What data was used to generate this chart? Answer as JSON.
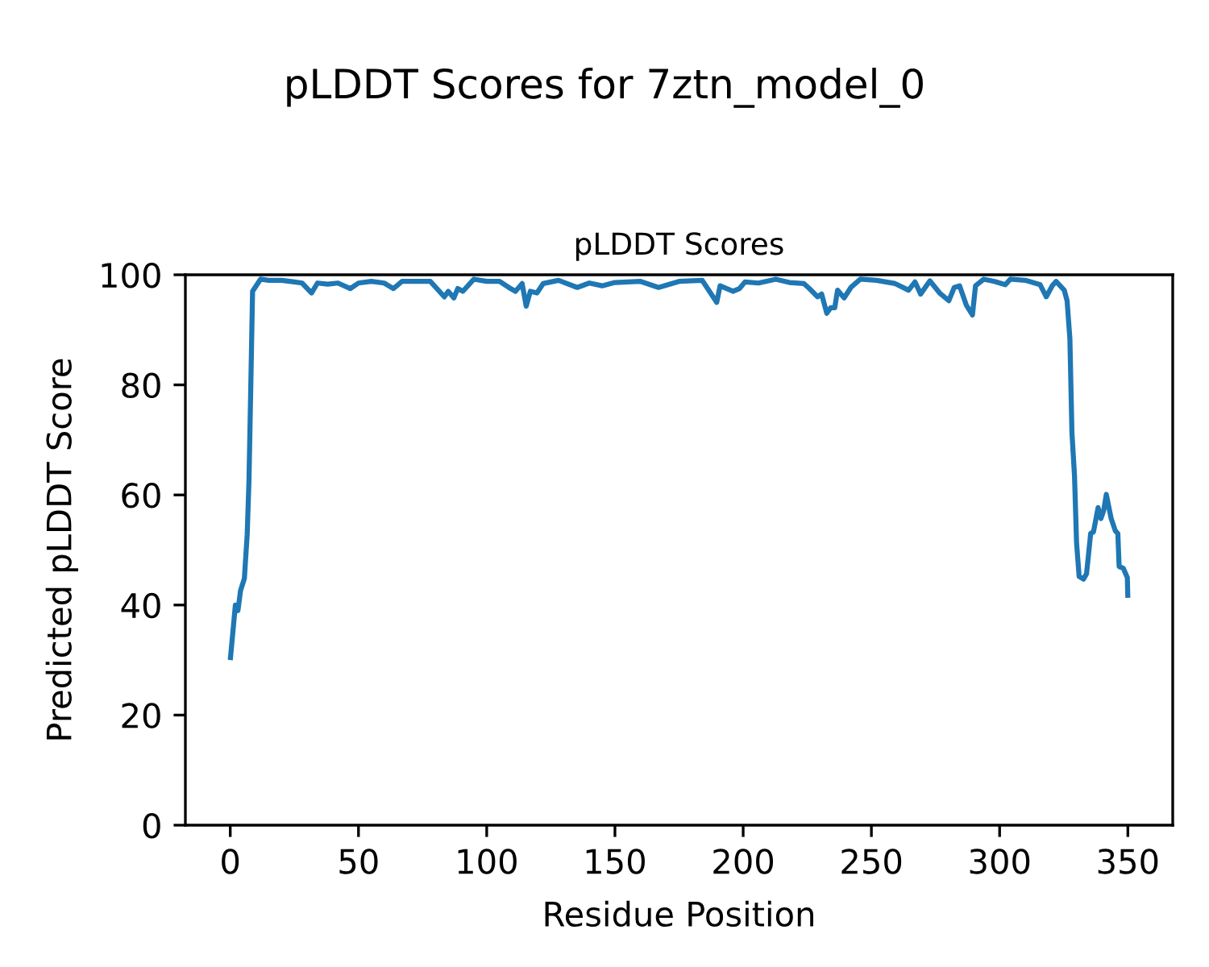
{
  "chart_data": {
    "type": "line",
    "title": "pLDDT Scores for 7ztn_model_0",
    "subtitle": "pLDDT Scores",
    "xlabel": "Residue Position",
    "ylabel": "Predicted pLDDT Score",
    "xlim": [
      -17.5,
      367.5
    ],
    "ylim": [
      0,
      100
    ],
    "xticks": [
      0,
      50,
      100,
      150,
      200,
      250,
      300,
      350
    ],
    "yticks": [
      0,
      20,
      40,
      60,
      80,
      100
    ],
    "grid": false,
    "series": [
      {
        "color": "#1f77b4",
        "x": [
          0,
          2,
          3,
          4,
          5.5,
          6.6,
          7.3,
          8,
          8.7,
          11.8,
          15,
          20,
          25,
          28,
          31.7,
          34,
          38,
          42,
          46.8,
          50,
          55,
          60,
          63.6,
          67,
          72,
          78,
          83.5,
          85,
          87.2,
          88.7,
          90.7,
          95,
          100,
          105,
          108.6,
          111.2,
          113.8,
          115.4,
          117,
          119.6,
          122,
          128,
          135.3,
          140,
          145,
          150,
          160,
          167,
          175,
          184,
          189.7,
          191,
          196,
          198.6,
          200.7,
          206,
          212.7,
          218,
          223.7,
          225.8,
          229,
          230.6,
          232.6,
          234.1,
          235.7,
          236.8,
          239.4,
          242,
          245.7,
          252,
          259.3,
          264.5,
          267,
          269.2,
          272.8,
          276.6,
          280.2,
          282.3,
          284.4,
          287,
          289.4,
          290.6,
          293.8,
          298,
          302.2,
          304.2,
          310,
          315.8,
          318.2,
          320.5,
          322,
          325.2,
          326.3,
          327.4,
          328.2,
          329.2,
          330,
          331,
          332.7,
          333.9,
          335.5,
          336.6,
          338.4,
          339.5,
          340.6,
          341.6,
          343.5,
          345.1,
          346.1,
          346.6,
          348.2,
          349.8,
          350
        ],
        "values": [
          30,
          40,
          39,
          42.6,
          44.8,
          52.8,
          62.6,
          79.6,
          97,
          99.2,
          99,
          99,
          98.7,
          98.5,
          96.7,
          98.5,
          98.3,
          98.5,
          97.5,
          98.5,
          98.8,
          98.5,
          97.5,
          98.8,
          98.8,
          98.8,
          96,
          97,
          95.8,
          97.5,
          97,
          99.2,
          98.8,
          98.8,
          97.7,
          97,
          98.4,
          94.3,
          97,
          96.7,
          98.4,
          99,
          97.7,
          98.5,
          98,
          98.6,
          98.8,
          97.7,
          98.8,
          99,
          95,
          98,
          97,
          97.5,
          98.7,
          98.5,
          99.2,
          98.6,
          98.4,
          97.5,
          96,
          96.5,
          93,
          94,
          94,
          97.2,
          95.8,
          97.7,
          99.2,
          99,
          98.4,
          97.2,
          98.7,
          96.5,
          98.9,
          96.7,
          95.3,
          97.7,
          98,
          94.5,
          92.7,
          98,
          99.2,
          98.8,
          98.2,
          99.2,
          99,
          98.2,
          96,
          98,
          98.8,
          97.2,
          95.3,
          88.4,
          71.3,
          63.5,
          51.3,
          45.2,
          44.7,
          45.7,
          53,
          53.3,
          57.7,
          55.7,
          57.2,
          60.1,
          55.7,
          53.5,
          53,
          47,
          46.7,
          45,
          41.3
        ]
      }
    ]
  }
}
